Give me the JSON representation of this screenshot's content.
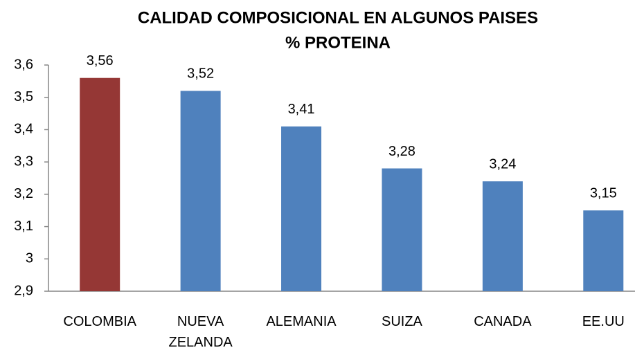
{
  "chart_data": {
    "type": "bar",
    "title": "CALIDAD COMPOSICIONAL EN ALGUNOS PAISES",
    "subtitle": "% PROTEINA",
    "categories": [
      "COLOMBIA",
      "NUEVA ZELANDA",
      "ALEMANIA",
      "SUIZA",
      "CANADA",
      "EE.UU"
    ],
    "values": [
      3.56,
      3.52,
      3.41,
      3.28,
      3.24,
      3.15
    ],
    "value_labels": [
      "3,56",
      "3,52",
      "3,41",
      "3,28",
      "3,24",
      "3,15"
    ],
    "colors": [
      "#953735",
      "#4f81bd",
      "#4f81bd",
      "#4f81bd",
      "#4f81bd",
      "#4f81bd"
    ],
    "ylim": [
      2.9,
      3.6
    ],
    "yticks": [
      {
        "value": 2.9,
        "label": "2,9"
      },
      {
        "value": 3.0,
        "label": "3"
      },
      {
        "value": 3.1,
        "label": "3,1"
      },
      {
        "value": 3.2,
        "label": "3,2"
      },
      {
        "value": 3.3,
        "label": "3,3"
      },
      {
        "value": 3.4,
        "label": "3,4"
      },
      {
        "value": 3.5,
        "label": "3,5"
      },
      {
        "value": 3.6,
        "label": "3,6"
      }
    ],
    "grid": false
  }
}
